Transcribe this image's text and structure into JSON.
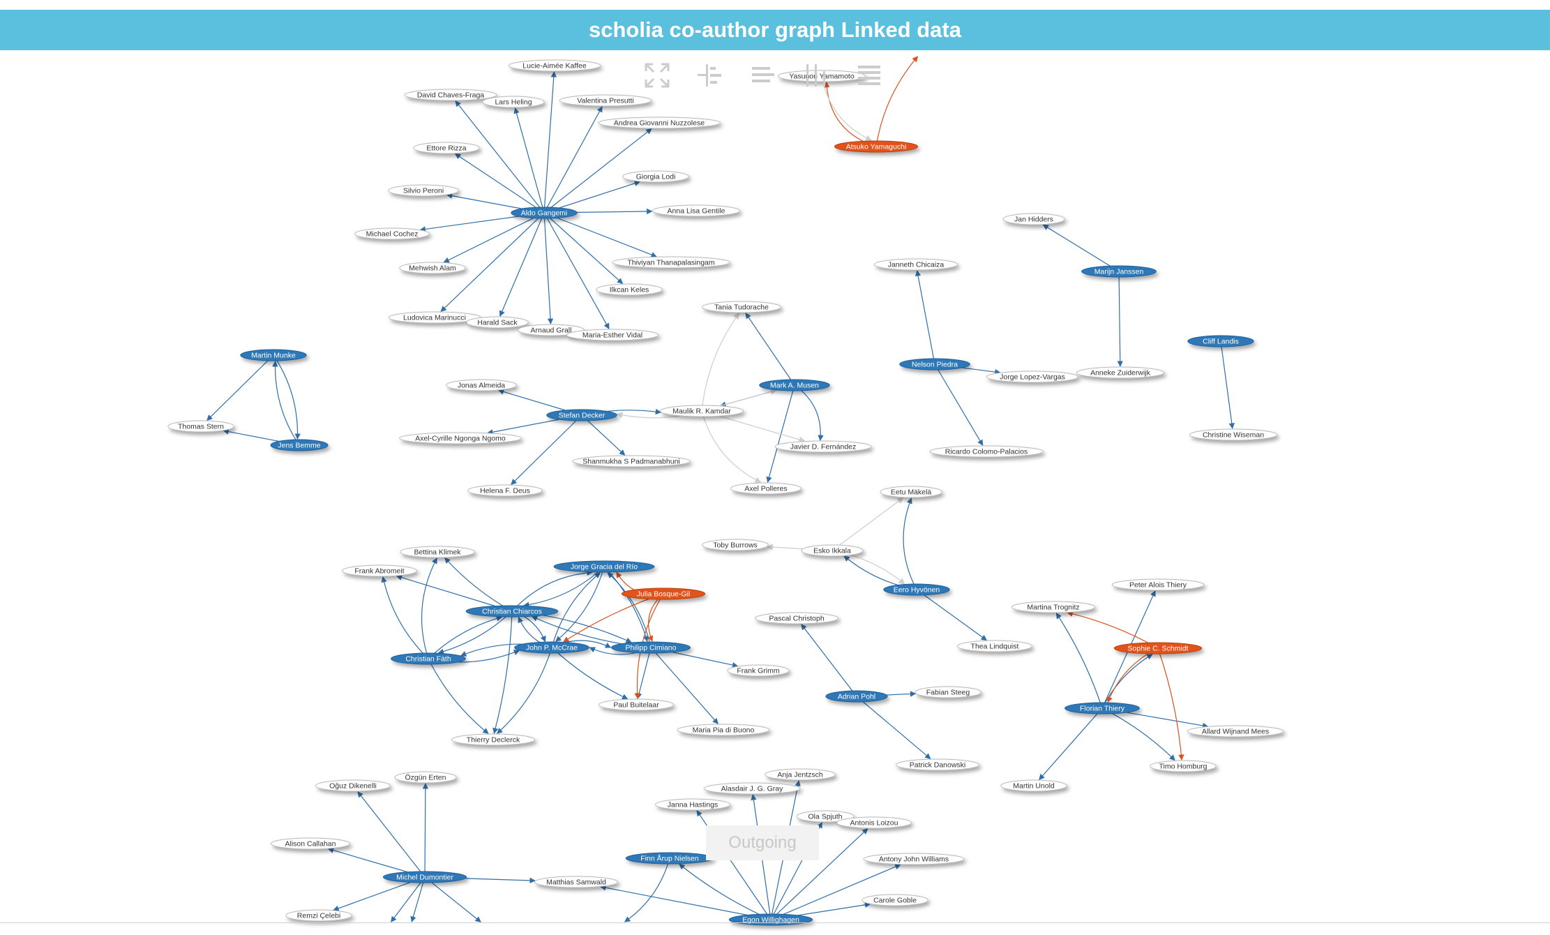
{
  "header": {
    "title": "scholia co-author graph Linked data"
  },
  "watermark": {
    "label": "Outgoing"
  },
  "colors": {
    "header_bg": "#5bc0de",
    "author_node": "#2e78b8",
    "highlight_node": "#e2531a",
    "coauthor_node": "#ffffff",
    "edge_blue": "#2f6ea8",
    "edge_orange": "#d8521c",
    "edge_grey": "#d0d0d0"
  },
  "toolbar": {
    "icons": [
      "fullscreen-icon",
      "hierarchy-icon",
      "align-icon",
      "columns-icon",
      "list-icon"
    ]
  },
  "graph": {
    "nodes": [
      {
        "id": "yasunori",
        "label": "Yasunori Yamamoto",
        "kind": "coauthor"
      },
      {
        "id": "atsuko",
        "label": "Atsuko Yamaguchi",
        "kind": "highlight"
      },
      {
        "id": "lucie",
        "label": "Lucie-Aimée Kaffee",
        "kind": "coauthor"
      },
      {
        "id": "david",
        "label": "David Chaves-Fraga",
        "kind": "coauthor"
      },
      {
        "id": "lars",
        "label": "Lars Heling",
        "kind": "coauthor"
      },
      {
        "id": "valentina",
        "label": "Valentina Presutti",
        "kind": "coauthor"
      },
      {
        "id": "andrea",
        "label": "Andrea Giovanni Nuzzolese",
        "kind": "coauthor"
      },
      {
        "id": "ettore",
        "label": "Ettore Rizza",
        "kind": "coauthor"
      },
      {
        "id": "giorgia",
        "label": "Giorgia Lodi",
        "kind": "coauthor"
      },
      {
        "id": "silvio",
        "label": "Silvio Peroni",
        "kind": "coauthor"
      },
      {
        "id": "aldo",
        "label": "Aldo Gangemi",
        "kind": "author"
      },
      {
        "id": "annalisa",
        "label": "Anna Lisa Gentile",
        "kind": "coauthor"
      },
      {
        "id": "michael",
        "label": "Michael Cochez",
        "kind": "coauthor"
      },
      {
        "id": "mehwish",
        "label": "Mehwish Alam",
        "kind": "coauthor"
      },
      {
        "id": "thiviyan",
        "label": "Thiviyan Thanapalasingam",
        "kind": "coauthor"
      },
      {
        "id": "ilkcan",
        "label": "Ilkcan Keles",
        "kind": "coauthor"
      },
      {
        "id": "ludovica",
        "label": "Ludovica Marinucci",
        "kind": "coauthor"
      },
      {
        "id": "harald",
        "label": "Harald Sack",
        "kind": "coauthor"
      },
      {
        "id": "arnaud",
        "label": "Arnaud Grall",
        "kind": "coauthor"
      },
      {
        "id": "mariaesther",
        "label": "Maria-Esther Vidal",
        "kind": "coauthor"
      },
      {
        "id": "jan",
        "label": "Jan Hidders",
        "kind": "coauthor"
      },
      {
        "id": "marijn",
        "label": "Marijn Janssen",
        "kind": "author"
      },
      {
        "id": "janneth",
        "label": "Janneth Chicaiza",
        "kind": "coauthor"
      },
      {
        "id": "tania",
        "label": "Tania Tudorache",
        "kind": "coauthor"
      },
      {
        "id": "cliff",
        "label": "Cliff Landis",
        "kind": "author"
      },
      {
        "id": "martinm",
        "label": "Martin Munke",
        "kind": "author"
      },
      {
        "id": "nelson",
        "label": "Nelson Piedra",
        "kind": "author"
      },
      {
        "id": "jorgelv",
        "label": "Jorge Lopez-Vargas",
        "kind": "coauthor"
      },
      {
        "id": "anneke",
        "label": "Anneke Zuiderwijk",
        "kind": "coauthor"
      },
      {
        "id": "jonas",
        "label": "Jonas Almeida",
        "kind": "coauthor"
      },
      {
        "id": "musen",
        "label": "Mark A. Musen",
        "kind": "author"
      },
      {
        "id": "stefan",
        "label": "Stefan Decker",
        "kind": "author"
      },
      {
        "id": "maulik",
        "label": "Maulik R. Kamdar",
        "kind": "coauthor"
      },
      {
        "id": "thomas",
        "label": "Thomas Stern",
        "kind": "coauthor"
      },
      {
        "id": "christinew",
        "label": "Christine Wiseman",
        "kind": "coauthor"
      },
      {
        "id": "axelcyrille",
        "label": "Axel-Cyrille Ngonga Ngomo",
        "kind": "coauthor"
      },
      {
        "id": "jens",
        "label": "Jens Bemme",
        "kind": "author"
      },
      {
        "id": "javier",
        "label": "Javier D. Fernández",
        "kind": "coauthor"
      },
      {
        "id": "ricardo",
        "label": "Ricardo Colomo-Palacios",
        "kind": "coauthor"
      },
      {
        "id": "shanmukha",
        "label": "Shanmukha S Padmanabhuni",
        "kind": "coauthor"
      },
      {
        "id": "helena",
        "label": "Helena F. Deus",
        "kind": "coauthor"
      },
      {
        "id": "axelp",
        "label": "Axel Polleres",
        "kind": "coauthor"
      },
      {
        "id": "eetu",
        "label": "Eetu Mäkelä",
        "kind": "coauthor"
      },
      {
        "id": "tobyb",
        "label": "Toby Burrows",
        "kind": "coauthor"
      },
      {
        "id": "esko",
        "label": "Esko Ikkala",
        "kind": "coauthor"
      },
      {
        "id": "bettina",
        "label": "Bettina Klimek",
        "kind": "coauthor"
      },
      {
        "id": "jorgegr",
        "label": "Jorge Gracia del Río",
        "kind": "author"
      },
      {
        "id": "frank",
        "label": "Frank Abromeit",
        "kind": "coauthor"
      },
      {
        "id": "julia",
        "label": "Julia Bosque-Gil",
        "kind": "highlight"
      },
      {
        "id": "eero",
        "label": "Eero Hyvönen",
        "kind": "author"
      },
      {
        "id": "peter",
        "label": "Peter Alois Thiery",
        "kind": "coauthor"
      },
      {
        "id": "christianc",
        "label": "Christian Chiarcos",
        "kind": "author"
      },
      {
        "id": "martinat",
        "label": "Martina Trognitz",
        "kind": "coauthor"
      },
      {
        "id": "pascal",
        "label": "Pascal Christoph",
        "kind": "coauthor"
      },
      {
        "id": "mccrae",
        "label": "John P. McCrae",
        "kind": "author"
      },
      {
        "id": "cimiano",
        "label": "Philipp Cimiano",
        "kind": "author"
      },
      {
        "id": "thea",
        "label": "Thea Lindquist",
        "kind": "coauthor"
      },
      {
        "id": "sophie",
        "label": "Sophie C. Schmidt",
        "kind": "highlight"
      },
      {
        "id": "christianf",
        "label": "Christian Fäth",
        "kind": "author"
      },
      {
        "id": "frankg",
        "label": "Frank Grimm",
        "kind": "coauthor"
      },
      {
        "id": "fabian",
        "label": "Fabian Steeg",
        "kind": "coauthor"
      },
      {
        "id": "adrian",
        "label": "Adrian Pohl",
        "kind": "author"
      },
      {
        "id": "paul",
        "label": "Paul Buitelaar",
        "kind": "coauthor"
      },
      {
        "id": "florian",
        "label": "Florian Thiery",
        "kind": "author"
      },
      {
        "id": "allard",
        "label": "Allard Wijnand Mees",
        "kind": "coauthor"
      },
      {
        "id": "mariapia",
        "label": "Maria Pia di Buono",
        "kind": "coauthor"
      },
      {
        "id": "thierry",
        "label": "Thierry Declerck",
        "kind": "coauthor"
      },
      {
        "id": "patrick",
        "label": "Patrick Danowski",
        "kind": "coauthor"
      },
      {
        "id": "timo",
        "label": "Timo Homburg",
        "kind": "coauthor"
      },
      {
        "id": "anja",
        "label": "Anja Jentzsch",
        "kind": "coauthor"
      },
      {
        "id": "oguz",
        "label": "Oğuz Dikenelli",
        "kind": "coauthor"
      },
      {
        "id": "ozgun",
        "label": "Özgün Erten",
        "kind": "coauthor"
      },
      {
        "id": "martinu",
        "label": "Martin Unold",
        "kind": "coauthor"
      },
      {
        "id": "alasdair",
        "label": "Alasdair J. G. Gray",
        "kind": "coauthor"
      },
      {
        "id": "janna",
        "label": "Janna Hastings",
        "kind": "coauthor"
      },
      {
        "id": "ola",
        "label": "Ola Spjuth",
        "kind": "coauthor"
      },
      {
        "id": "antonis",
        "label": "Antonis Loizou",
        "kind": "coauthor"
      },
      {
        "id": "alison",
        "label": "Alison Callahan",
        "kind": "coauthor"
      },
      {
        "id": "finn",
        "label": "Finn Årup Nielsen",
        "kind": "author"
      },
      {
        "id": "antony",
        "label": "Antony John Williams",
        "kind": "coauthor"
      },
      {
        "id": "michel",
        "label": "Michel Dumontier",
        "kind": "author"
      },
      {
        "id": "matthias",
        "label": "Matthias Samwald",
        "kind": "coauthor"
      },
      {
        "id": "carole",
        "label": "Carole Goble",
        "kind": "coauthor"
      },
      {
        "id": "remzi",
        "label": "Remzi Çelebi",
        "kind": "coauthor"
      },
      {
        "id": "egon",
        "label": "Egon Willighagen",
        "kind": "author"
      }
    ],
    "edges": [
      {
        "from": "atsuko",
        "to": "yasunori",
        "color": "orange"
      },
      {
        "from": "yasunori",
        "to": "atsuko",
        "color": "grey"
      },
      {
        "from": "atsuko",
        "to": "offtop",
        "color": "orange"
      },
      {
        "from": "aldo",
        "to": "lucie",
        "color": "blue"
      },
      {
        "from": "aldo",
        "to": "david",
        "color": "blue"
      },
      {
        "from": "aldo",
        "to": "lars",
        "color": "blue"
      },
      {
        "from": "aldo",
        "to": "valentina",
        "color": "blue"
      },
      {
        "from": "aldo",
        "to": "andrea",
        "color": "blue"
      },
      {
        "from": "aldo",
        "to": "ettore",
        "color": "blue"
      },
      {
        "from": "aldo",
        "to": "giorgia",
        "color": "blue"
      },
      {
        "from": "aldo",
        "to": "silvio",
        "color": "blue"
      },
      {
        "from": "aldo",
        "to": "annalisa",
        "color": "blue"
      },
      {
        "from": "aldo",
        "to": "michael",
        "color": "blue"
      },
      {
        "from": "aldo",
        "to": "mehwish",
        "color": "blue"
      },
      {
        "from": "aldo",
        "to": "thiviyan",
        "color": "blue"
      },
      {
        "from": "aldo",
        "to": "ilkcan",
        "color": "blue"
      },
      {
        "from": "aldo",
        "to": "ludovica",
        "color": "blue"
      },
      {
        "from": "aldo",
        "to": "harald",
        "color": "blue"
      },
      {
        "from": "aldo",
        "to": "arnaud",
        "color": "blue"
      },
      {
        "from": "aldo",
        "to": "mariaesther",
        "color": "blue"
      },
      {
        "from": "marijn",
        "to": "jan",
        "color": "blue"
      },
      {
        "from": "marijn",
        "to": "anneke",
        "color": "blue"
      },
      {
        "from": "nelson",
        "to": "janneth",
        "color": "blue"
      },
      {
        "from": "nelson",
        "to": "jorgelv",
        "color": "blue"
      },
      {
        "from": "nelson",
        "to": "ricardo",
        "color": "blue"
      },
      {
        "from": "cliff",
        "to": "christinew",
        "color": "blue"
      },
      {
        "from": "martinm",
        "to": "thomas",
        "color": "blue"
      },
      {
        "from": "martinm",
        "to": "jens",
        "color": "blue"
      },
      {
        "from": "jens",
        "to": "martinm",
        "color": "blue"
      },
      {
        "from": "jens",
        "to": "thomas",
        "color": "blue"
      },
      {
        "from": "musen",
        "to": "tania",
        "color": "blue"
      },
      {
        "from": "musen",
        "to": "maulik",
        "color": "blue"
      },
      {
        "from": "musen",
        "to": "javier",
        "color": "blue"
      },
      {
        "from": "musen",
        "to": "axelp",
        "color": "blue"
      },
      {
        "from": "stefan",
        "to": "jonas",
        "color": "blue"
      },
      {
        "from": "stefan",
        "to": "maulik",
        "color": "blue"
      },
      {
        "from": "stefan",
        "to": "axelcyrille",
        "color": "blue"
      },
      {
        "from": "stefan",
        "to": "shanmukha",
        "color": "blue"
      },
      {
        "from": "stefan",
        "to": "helena",
        "color": "blue"
      },
      {
        "from": "maulik",
        "to": "tania",
        "color": "grey"
      },
      {
        "from": "maulik",
        "to": "musen",
        "color": "grey"
      },
      {
        "from": "maulik",
        "to": "stefan",
        "color": "grey"
      },
      {
        "from": "maulik",
        "to": "javier",
        "color": "grey"
      },
      {
        "from": "maulik",
        "to": "axelp",
        "color": "grey"
      },
      {
        "from": "eero",
        "to": "eetu",
        "color": "blue"
      },
      {
        "from": "eero",
        "to": "esko",
        "color": "blue"
      },
      {
        "from": "eero",
        "to": "thea",
        "color": "blue"
      },
      {
        "from": "esko",
        "to": "tobyb",
        "color": "grey"
      },
      {
        "from": "esko",
        "to": "eetu",
        "color": "grey"
      },
      {
        "from": "esko",
        "to": "eero",
        "color": "grey"
      },
      {
        "from": "christianc",
        "to": "bettina",
        "color": "blue"
      },
      {
        "from": "christianc",
        "to": "frank",
        "color": "blue"
      },
      {
        "from": "christianc",
        "to": "jorgegr",
        "color": "blue"
      },
      {
        "from": "christianc",
        "to": "mccrae",
        "color": "blue"
      },
      {
        "from": "christianc",
        "to": "cimiano",
        "color": "blue"
      },
      {
        "from": "christianc",
        "to": "christianf",
        "color": "blue"
      },
      {
        "from": "christianc",
        "to": "thierry",
        "color": "blue"
      },
      {
        "from": "mccrae",
        "to": "jorgegr",
        "color": "blue"
      },
      {
        "from": "mccrae",
        "to": "christianc",
        "color": "blue"
      },
      {
        "from": "mccrae",
        "to": "cimiano",
        "color": "blue"
      },
      {
        "from": "mccrae",
        "to": "christianf",
        "color": "blue"
      },
      {
        "from": "mccrae",
        "to": "paul",
        "color": "blue"
      },
      {
        "from": "mccrae",
        "to": "thierry",
        "color": "blue"
      },
      {
        "from": "jorgegr",
        "to": "mccrae",
        "color": "blue"
      },
      {
        "from": "jorgegr",
        "to": "cimiano",
        "color": "blue"
      },
      {
        "from": "jorgegr",
        "to": "christianc",
        "color": "blue"
      },
      {
        "from": "cimiano",
        "to": "jorgegr",
        "color": "blue"
      },
      {
        "from": "cimiano",
        "to": "mccrae",
        "color": "blue"
      },
      {
        "from": "cimiano",
        "to": "frankg",
        "color": "blue"
      },
      {
        "from": "cimiano",
        "to": "paul",
        "color": "blue"
      },
      {
        "from": "cimiano",
        "to": "mariapia",
        "color": "blue"
      },
      {
        "from": "cimiano",
        "to": "christianc",
        "color": "blue"
      },
      {
        "from": "christianf",
        "to": "bettina",
        "color": "blue"
      },
      {
        "from": "christianf",
        "to": "frank",
        "color": "blue"
      },
      {
        "from": "christianf",
        "to": "christianc",
        "color": "blue"
      },
      {
        "from": "christianf",
        "to": "mccrae",
        "color": "blue"
      },
      {
        "from": "christianf",
        "to": "thierry",
        "color": "blue"
      },
      {
        "from": "julia",
        "to": "jorgegr",
        "color": "orange"
      },
      {
        "from": "julia",
        "to": "mccrae",
        "color": "orange"
      },
      {
        "from": "julia",
        "to": "cimiano",
        "color": "orange"
      },
      {
        "from": "julia",
        "to": "paul",
        "color": "orange"
      },
      {
        "from": "adrian",
        "to": "pascal",
        "color": "blue"
      },
      {
        "from": "adrian",
        "to": "fabian",
        "color": "blue"
      },
      {
        "from": "adrian",
        "to": "patrick",
        "color": "blue"
      },
      {
        "from": "florian",
        "to": "martinat",
        "color": "blue"
      },
      {
        "from": "florian",
        "to": "peter",
        "color": "blue"
      },
      {
        "from": "florian",
        "to": "sophie",
        "color": "blue"
      },
      {
        "from": "florian",
        "to": "allard",
        "color": "blue"
      },
      {
        "from": "florian",
        "to": "timo",
        "color": "blue"
      },
      {
        "from": "florian",
        "to": "martinu",
        "color": "blue"
      },
      {
        "from": "sophie",
        "to": "martinat",
        "color": "orange"
      },
      {
        "from": "sophie",
        "to": "florian",
        "color": "orange"
      },
      {
        "from": "sophie",
        "to": "timo",
        "color": "orange"
      },
      {
        "from": "michel",
        "to": "oguz",
        "color": "blue"
      },
      {
        "from": "michel",
        "to": "ozgun",
        "color": "blue"
      },
      {
        "from": "michel",
        "to": "alison",
        "color": "blue"
      },
      {
        "from": "michel",
        "to": "matthias",
        "color": "blue"
      },
      {
        "from": "michel",
        "to": "remzi",
        "color": "blue"
      },
      {
        "from": "michel",
        "to": "offbottom1",
        "color": "blue"
      },
      {
        "from": "michel",
        "to": "offbottom2",
        "color": "blue"
      },
      {
        "from": "michel",
        "to": "offbottom3",
        "color": "blue"
      },
      {
        "from": "egon",
        "to": "anja",
        "color": "blue"
      },
      {
        "from": "egon",
        "to": "alasdair",
        "color": "blue"
      },
      {
        "from": "egon",
        "to": "janna",
        "color": "blue"
      },
      {
        "from": "egon",
        "to": "ola",
        "color": "blue"
      },
      {
        "from": "egon",
        "to": "antonis",
        "color": "blue"
      },
      {
        "from": "egon",
        "to": "antony",
        "color": "blue"
      },
      {
        "from": "egon",
        "to": "carole",
        "color": "blue"
      },
      {
        "from": "egon",
        "to": "matthias",
        "color": "blue"
      },
      {
        "from": "egon",
        "to": "finn",
        "color": "blue"
      },
      {
        "from": "finn",
        "to": "offbottom4",
        "color": "blue"
      }
    ]
  }
}
